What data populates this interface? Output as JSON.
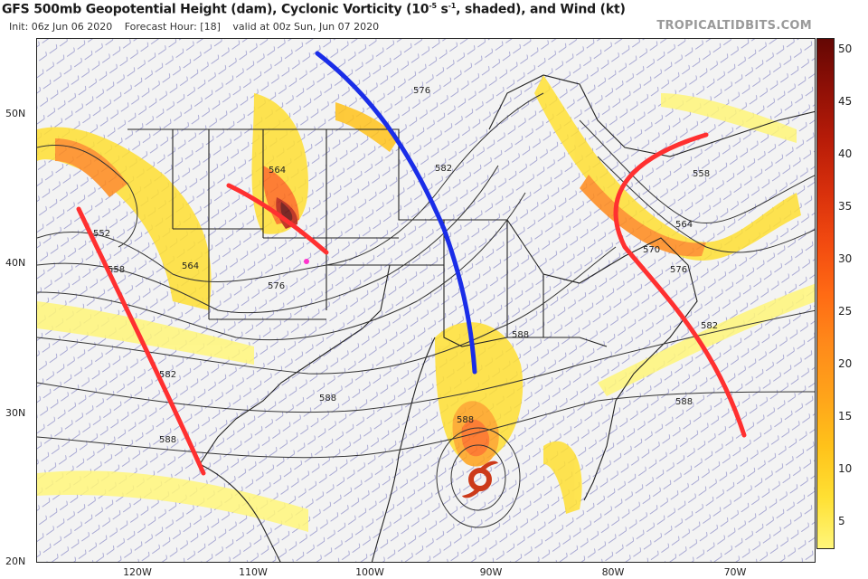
{
  "header": {
    "title_part1": "GFS 500mb Geopotential Height (dam), Cyclonic Vorticity (10",
    "title_sup": "-5",
    "title_part2": " s",
    "title_sup2": "-1",
    "title_part3": ", shaded), and Wind (kt)",
    "init": "Init: 06z Jun 06 2020",
    "forecast_hour": "Forecast Hour: [18]",
    "valid": "valid at 00z Sun, Jun 07 2020",
    "brand": "TROPICALTIDBITS.COM"
  },
  "axes": {
    "lat_labels": [
      "50N",
      "40N",
      "30N",
      "20N"
    ],
    "lon_labels": [
      "120W",
      "110W",
      "100W",
      "90W",
      "80W",
      "70W"
    ]
  },
  "contours": {
    "labels": [
      "552",
      "558",
      "564",
      "564",
      "576",
      "582",
      "588",
      "576",
      "582",
      "588",
      "558",
      "564",
      "570",
      "576",
      "582",
      "588",
      "588",
      "588"
    ]
  },
  "colorbar": {
    "ticks": [
      "50",
      "45",
      "40",
      "35",
      "30",
      "25",
      "20",
      "15",
      "10",
      "5"
    ],
    "colors": [
      "#fff67a",
      "#ffe033",
      "#ffc21a",
      "#ffa31a",
      "#ff8a1a",
      "#ff6a14",
      "#f24a10",
      "#d8300c",
      "#b81c08",
      "#901006",
      "#640704"
    ]
  },
  "annotations": {
    "trough_colors": {
      "red": "#ff3030",
      "blue": "#1a2de8"
    },
    "tropical_system_color": "#cc3a1a"
  }
}
